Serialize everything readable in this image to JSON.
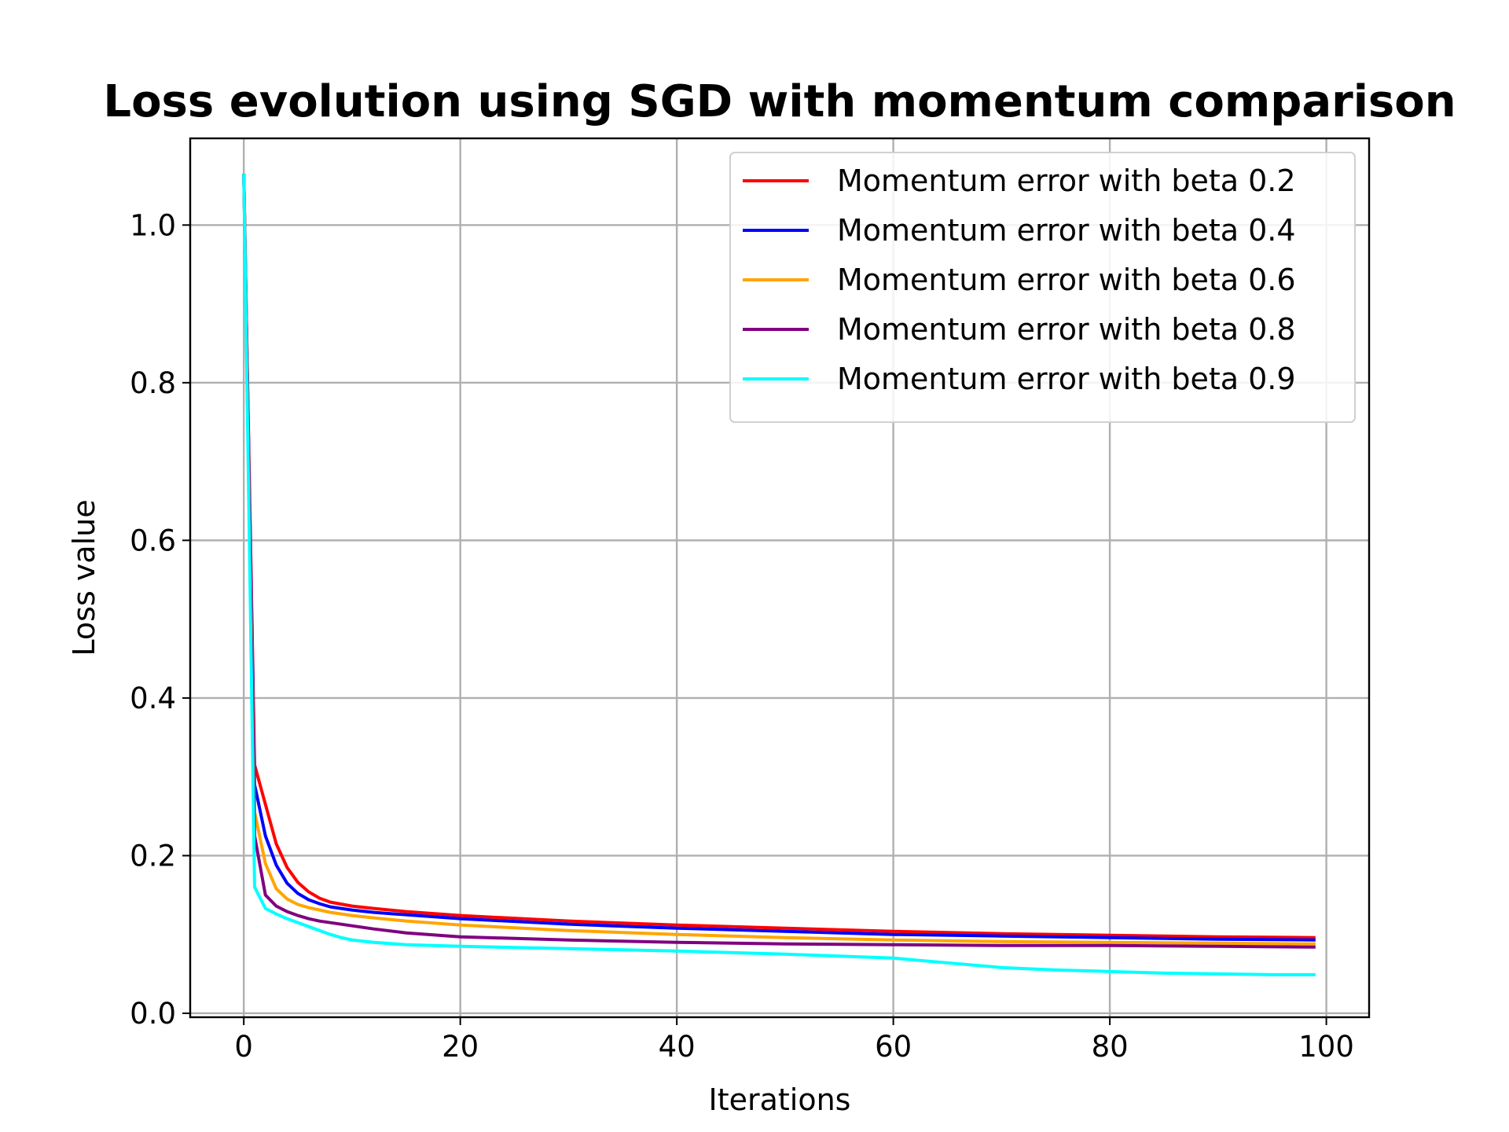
{
  "chart_data": {
    "type": "line",
    "title": "Loss evolution using SGD with momentum comparison",
    "xlabel": "Iterations",
    "ylabel": "Loss value",
    "xlim": [
      -4.95,
      103.95
    ],
    "ylim": [
      -0.005,
      1.11
    ],
    "xticks": [
      0,
      20,
      40,
      60,
      80,
      100
    ],
    "yticks": [
      0.0,
      0.2,
      0.4,
      0.6,
      0.8,
      1.0
    ],
    "xtick_labels": [
      "0",
      "20",
      "40",
      "60",
      "80",
      "100"
    ],
    "ytick_labels": [
      "0.0",
      "0.2",
      "0.4",
      "0.6",
      "0.8",
      "1.0"
    ],
    "grid": true,
    "legend_position": "top-right",
    "series": [
      {
        "name": "Momentum error with beta 0.2",
        "color": "#ff0000",
        "points": [
          [
            0,
            1.065
          ],
          [
            1,
            0.315
          ],
          [
            2,
            0.265
          ],
          [
            3,
            0.215
          ],
          [
            4,
            0.185
          ],
          [
            5,
            0.166
          ],
          [
            6,
            0.154
          ],
          [
            7,
            0.146
          ],
          [
            8,
            0.141
          ],
          [
            10,
            0.136
          ],
          [
            12,
            0.133
          ],
          [
            15,
            0.129
          ],
          [
            20,
            0.124
          ],
          [
            30,
            0.117
          ],
          [
            40,
            0.112
          ],
          [
            50,
            0.108
          ],
          [
            60,
            0.104
          ],
          [
            70,
            0.101
          ],
          [
            80,
            0.099
          ],
          [
            90,
            0.097
          ],
          [
            99,
            0.096
          ]
        ]
      },
      {
        "name": "Momentum error with beta 0.4",
        "color": "#0000ff",
        "points": [
          [
            0,
            1.065
          ],
          [
            1,
            0.29
          ],
          [
            2,
            0.225
          ],
          [
            3,
            0.188
          ],
          [
            4,
            0.165
          ],
          [
            5,
            0.152
          ],
          [
            6,
            0.144
          ],
          [
            7,
            0.139
          ],
          [
            8,
            0.135
          ],
          [
            10,
            0.131
          ],
          [
            12,
            0.128
          ],
          [
            15,
            0.125
          ],
          [
            20,
            0.12
          ],
          [
            30,
            0.113
          ],
          [
            40,
            0.108
          ],
          [
            50,
            0.104
          ],
          [
            60,
            0.1
          ],
          [
            70,
            0.098
          ],
          [
            80,
            0.096
          ],
          [
            90,
            0.094
          ],
          [
            99,
            0.093
          ]
        ]
      },
      {
        "name": "Momentum error with beta 0.6",
        "color": "#ffa500",
        "points": [
          [
            0,
            1.065
          ],
          [
            1,
            0.255
          ],
          [
            2,
            0.19
          ],
          [
            3,
            0.158
          ],
          [
            4,
            0.145
          ],
          [
            5,
            0.138
          ],
          [
            6,
            0.134
          ],
          [
            7,
            0.131
          ],
          [
            8,
            0.128
          ],
          [
            10,
            0.124
          ],
          [
            12,
            0.121
          ],
          [
            15,
            0.117
          ],
          [
            20,
            0.112
          ],
          [
            30,
            0.105
          ],
          [
            40,
            0.1
          ],
          [
            50,
            0.096
          ],
          [
            60,
            0.093
          ],
          [
            70,
            0.091
          ],
          [
            80,
            0.09
          ],
          [
            90,
            0.089
          ],
          [
            99,
            0.088
          ]
        ]
      },
      {
        "name": "Momentum error with beta 0.8",
        "color": "#800080",
        "points": [
          [
            0,
            1.065
          ],
          [
            1,
            0.225
          ],
          [
            2,
            0.15
          ],
          [
            3,
            0.136
          ],
          [
            4,
            0.129
          ],
          [
            5,
            0.124
          ],
          [
            6,
            0.12
          ],
          [
            7,
            0.117
          ],
          [
            8,
            0.115
          ],
          [
            10,
            0.111
          ],
          [
            12,
            0.107
          ],
          [
            15,
            0.102
          ],
          [
            20,
            0.097
          ],
          [
            30,
            0.093
          ],
          [
            40,
            0.09
          ],
          [
            50,
            0.088
          ],
          [
            60,
            0.087
          ],
          [
            70,
            0.086
          ],
          [
            80,
            0.086
          ],
          [
            90,
            0.085
          ],
          [
            99,
            0.084
          ]
        ]
      },
      {
        "name": "Momentum error with beta 0.9",
        "color": "#00ffff",
        "points": [
          [
            0,
            1.065
          ],
          [
            1,
            0.16
          ],
          [
            2,
            0.133
          ],
          [
            3,
            0.126
          ],
          [
            4,
            0.12
          ],
          [
            5,
            0.115
          ],
          [
            6,
            0.11
          ],
          [
            7,
            0.105
          ],
          [
            8,
            0.1
          ],
          [
            9,
            0.096
          ],
          [
            10,
            0.093
          ],
          [
            12,
            0.09
          ],
          [
            15,
            0.087
          ],
          [
            20,
            0.085
          ],
          [
            30,
            0.082
          ],
          [
            40,
            0.079
          ],
          [
            50,
            0.075
          ],
          [
            60,
            0.07
          ],
          [
            65,
            0.064
          ],
          [
            70,
            0.058
          ],
          [
            75,
            0.055
          ],
          [
            80,
            0.053
          ],
          [
            85,
            0.051
          ],
          [
            90,
            0.05
          ],
          [
            95,
            0.049
          ],
          [
            99,
            0.049
          ]
        ]
      }
    ]
  }
}
